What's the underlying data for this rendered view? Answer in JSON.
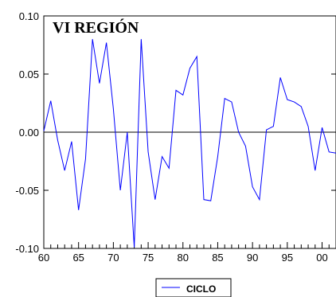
{
  "chart_data": {
    "type": "line",
    "title": "VI REGIÓN",
    "xlabel": "",
    "ylabel": "",
    "xlim": [
      1960,
      2002
    ],
    "ylim": [
      -0.1,
      0.1
    ],
    "x_ticks": [
      1960,
      1965,
      1970,
      1975,
      1980,
      1985,
      1990,
      1995,
      2000
    ],
    "x_tick_labels": [
      "60",
      "65",
      "70",
      "75",
      "80",
      "85",
      "90",
      "95",
      "00"
    ],
    "y_ticks": [
      -0.1,
      -0.05,
      0.0,
      0.05,
      0.1
    ],
    "y_tick_labels": [
      "-0.10",
      "-0.05",
      "0.00",
      "0.05",
      "0.10"
    ],
    "reference_line": 0.0,
    "grid": false,
    "legend_position": "bottom-center",
    "colors": {
      "series": "#0000ff",
      "axis": "#000000"
    },
    "series": [
      {
        "name": "CICLO",
        "x": [
          1960,
          1961,
          1962,
          1963,
          1964,
          1965,
          1966,
          1967,
          1968,
          1969,
          1970,
          1971,
          1972,
          1973,
          1974,
          1975,
          1976,
          1977,
          1978,
          1979,
          1980,
          1981,
          1982,
          1983,
          1984,
          1985,
          1986,
          1987,
          1988,
          1989,
          1990,
          1991,
          1992,
          1993,
          1994,
          1995,
          1996,
          1997,
          1998,
          1999,
          2000,
          2001,
          2002
        ],
        "values": [
          0.001,
          0.027,
          -0.007,
          -0.033,
          -0.008,
          -0.067,
          -0.023,
          0.08,
          0.042,
          0.077,
          0.02,
          -0.05,
          0.0,
          -0.099,
          0.08,
          -0.017,
          -0.058,
          -0.021,
          -0.031,
          0.036,
          0.032,
          0.055,
          0.065,
          -0.058,
          -0.059,
          -0.021,
          0.029,
          0.026,
          0.0,
          -0.012,
          -0.047,
          -0.058,
          0.002,
          0.005,
          0.047,
          0.028,
          0.026,
          0.022,
          0.005,
          -0.033,
          0.004,
          -0.017,
          -0.018
        ]
      }
    ]
  }
}
